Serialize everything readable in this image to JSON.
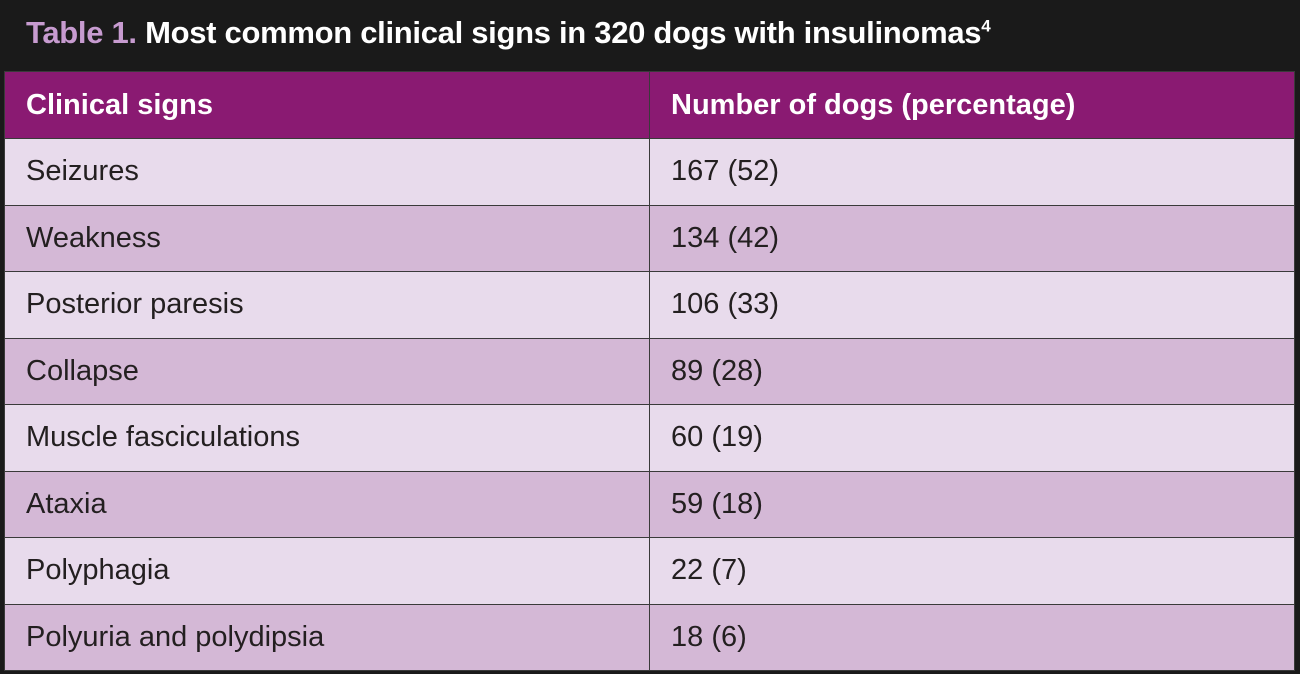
{
  "title": {
    "label": "Table 1.",
    "text": "Most common clinical signs in 320 dogs with insulinomas",
    "reference": "4"
  },
  "colors": {
    "title_background": "#1a1a1a",
    "title_label": "#c79bd0",
    "header_background": "#8a1a72",
    "row_light": "#e8dbec",
    "row_dark": "#d4b8d6"
  },
  "table": {
    "headers": [
      "Clinical signs",
      "Number of dogs (percentage)"
    ],
    "rows": [
      [
        "Seizures",
        "167 (52)"
      ],
      [
        "Weakness",
        "134 (42)"
      ],
      [
        "Posterior paresis",
        "106 (33)"
      ],
      [
        "Collapse",
        "89 (28)"
      ],
      [
        "Muscle fasciculations",
        "60 (19)"
      ],
      [
        "Ataxia",
        "59 (18)"
      ],
      [
        "Polyphagia",
        "22 (7)"
      ],
      [
        "Polyuria and polydipsia",
        "18 (6)"
      ]
    ]
  }
}
